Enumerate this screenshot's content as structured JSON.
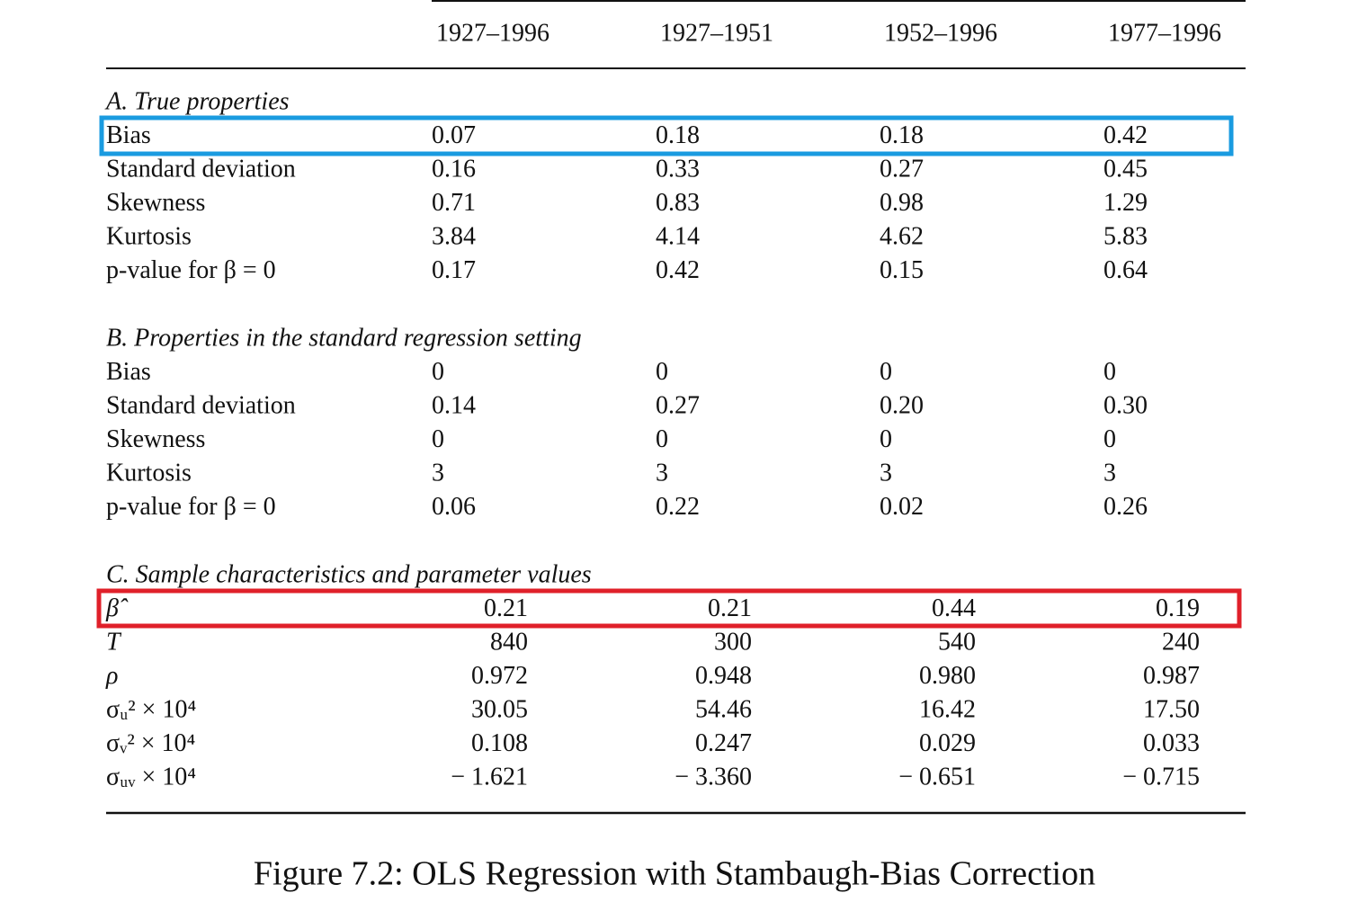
{
  "header": {
    "columns": [
      "1927–1996",
      "1927–1951",
      "1952–1996",
      "1977–1996"
    ]
  },
  "sections": [
    {
      "title": "A. True properties",
      "rows": [
        {
          "label": "Bias",
          "values": [
            "0.07",
            "0.18",
            "0.18",
            "0.42"
          ]
        },
        {
          "label": "Standard deviation",
          "values": [
            "0.16",
            "0.33",
            "0.27",
            "0.45"
          ]
        },
        {
          "label": "Skewness",
          "values": [
            "0.71",
            "0.83",
            "0.98",
            "1.29"
          ]
        },
        {
          "label": "Kurtosis",
          "values": [
            "3.84",
            "4.14",
            "4.62",
            "5.83"
          ]
        },
        {
          "label": "p-value for β = 0",
          "values": [
            "0.17",
            "0.42",
            "0.15",
            "0.64"
          ]
        }
      ]
    },
    {
      "title": "B. Properties in the standard regression setting",
      "rows": [
        {
          "label": "Bias",
          "values": [
            "0",
            "0",
            "0",
            "0"
          ]
        },
        {
          "label": "Standard deviation",
          "values": [
            "0.14",
            "0.27",
            "0.20",
            "0.30"
          ]
        },
        {
          "label": "Skewness",
          "values": [
            "0",
            "0",
            "0",
            "0"
          ]
        },
        {
          "label": "Kurtosis",
          "values": [
            "3",
            "3",
            "3",
            "3"
          ]
        },
        {
          "label": "p-value for β = 0",
          "values": [
            "0.06",
            "0.22",
            "0.02",
            "0.26"
          ]
        }
      ]
    },
    {
      "title": "C. Sample characteristics and parameter values",
      "rows": [
        {
          "label": "β̂",
          "values": [
            "0.21",
            "0.21",
            "0.44",
            "0.19"
          ]
        },
        {
          "label": "T",
          "values": [
            "840",
            "300",
            "540",
            "240"
          ]
        },
        {
          "label": "ρ",
          "values": [
            "0.972",
            "0.948",
            "0.980",
            "0.987"
          ]
        },
        {
          "label": "σᵤ² × 10⁴",
          "values": [
            "30.05",
            "54.46",
            "16.42",
            "17.50"
          ]
        },
        {
          "label": "σᵥ² × 10⁴",
          "values": [
            "0.108",
            "0.247",
            "0.029",
            "0.033"
          ]
        },
        {
          "label": "σᵤᵥ × 10⁴",
          "values": [
            "− 1.621",
            "− 3.360",
            "− 0.651",
            "− 0.715"
          ]
        }
      ]
    }
  ],
  "caption": "Figure 7.2: OLS Regression with Stambaugh-Bias Correction"
}
